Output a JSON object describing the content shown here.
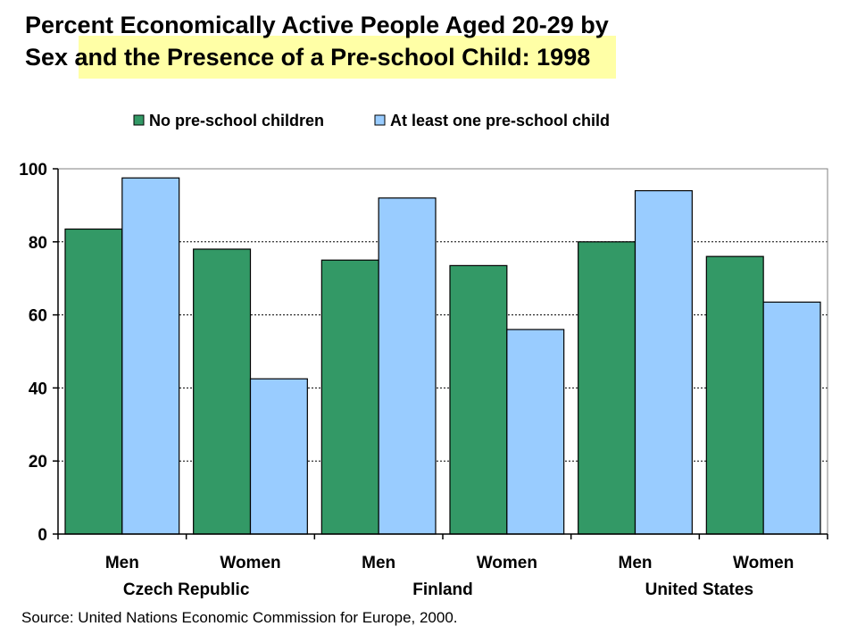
{
  "title_lines": [
    "Percent Economically Active People Aged 20-29 by",
    "Sex and the Presence of a Pre-school Child:  1998"
  ],
  "source": "Source:  United Nations Economic Commission for Europe, 2000.",
  "chart_data": {
    "type": "bar",
    "groups": [
      "Czech Republic",
      "Finland",
      "United States"
    ],
    "categories": [
      "Men",
      "Women",
      "Men",
      "Women",
      "Men",
      "Women"
    ],
    "series": [
      {
        "name": "No pre-school children",
        "color": "#339966",
        "values": [
          83.5,
          78,
          75,
          73.5,
          80,
          76
        ]
      },
      {
        "name": "At least one pre-school child",
        "color": "#99ccff",
        "values": [
          97.5,
          42.5,
          92,
          56,
          94,
          63.5
        ]
      }
    ],
    "ylim": [
      0,
      100
    ],
    "yticks": [
      0,
      20,
      40,
      60,
      80,
      100
    ],
    "grid": true,
    "legend_position": "top"
  }
}
